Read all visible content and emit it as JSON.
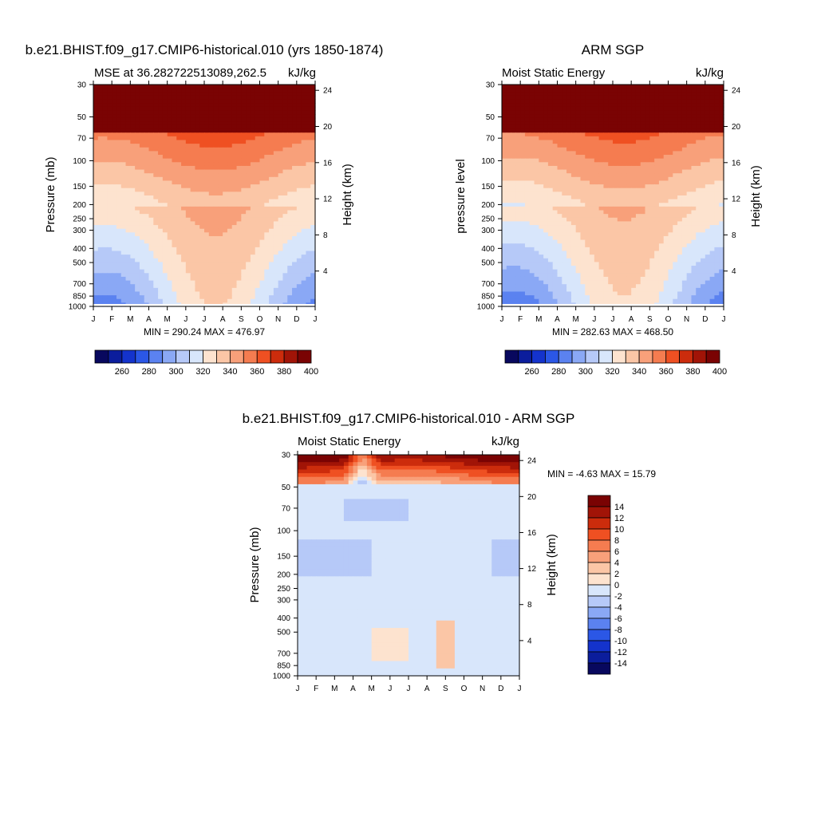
{
  "colors": {
    "palette": [
      "#08085e",
      "#0b1d9c",
      "#1433cc",
      "#2b57e6",
      "#5b82f0",
      "#8aa8f5",
      "#b6c9f8",
      "#d8e6fb",
      "#fde3cf",
      "#fbc6a6",
      "#f8a07a",
      "#f57c50",
      "#ef5022",
      "#cc2c0c",
      "#a11407",
      "#7a0303"
    ]
  },
  "chart_data": [
    {
      "type": "heatmap",
      "title": "b.e21.BHIST.f09_g17.CMIP6-historical.010 (yrs 1850-1874)",
      "left_label": "MSE at 36.282722513089,262.5",
      "right_label": "kJ/kg",
      "ylabel": "Pressure (mb)",
      "ylabel_right": "Height (km)",
      "months": [
        "J",
        "F",
        "M",
        "A",
        "M",
        "J",
        "J",
        "A",
        "S",
        "O",
        "N",
        "D",
        "J"
      ],
      "pressure_ticks": [
        "30",
        "50",
        "70",
        "100",
        "150",
        "200",
        "250",
        "300",
        "400",
        "500",
        "700",
        "850",
        "1000"
      ],
      "height_ticks": [
        "24",
        "20",
        "16",
        "12",
        "8",
        "4"
      ],
      "stats": "MIN = 290.24 MAX = 476.97",
      "colorbar_labels": [
        "260",
        "280",
        "300",
        "320",
        "340",
        "360",
        "380",
        "400"
      ],
      "colorbar_levels": [
        250,
        260,
        270,
        280,
        290,
        300,
        310,
        320,
        330,
        340,
        350,
        360,
        370,
        380,
        390,
        400
      ],
      "scene": "model"
    },
    {
      "type": "heatmap",
      "title": "ARM SGP",
      "left_label": "Moist Static Energy",
      "right_label": "kJ/kg",
      "ylabel": "pressure level",
      "ylabel_right": "Height (km)",
      "months": [
        "J",
        "F",
        "M",
        "A",
        "M",
        "J",
        "J",
        "A",
        "S",
        "O",
        "N",
        "D",
        "J"
      ],
      "pressure_ticks": [
        "30",
        "50",
        "70",
        "100",
        "150",
        "200",
        "250",
        "300",
        "400",
        "500",
        "700",
        "850",
        "1000"
      ],
      "height_ticks": [
        "24",
        "20",
        "16",
        "12",
        "8",
        "4"
      ],
      "stats": "MIN = 282.63 MAX = 468.50",
      "colorbar_labels": [
        "260",
        "280",
        "300",
        "320",
        "340",
        "360",
        "380",
        "400"
      ],
      "colorbar_levels": [
        250,
        260,
        270,
        280,
        290,
        300,
        310,
        320,
        330,
        340,
        350,
        360,
        370,
        380,
        390,
        400
      ],
      "scene": "obs"
    },
    {
      "type": "heatmap",
      "title": "b.e21.BHIST.f09_g17.CMIP6-historical.010 - ARM SGP",
      "left_label": "Moist Static Energy",
      "right_label": "kJ/kg",
      "ylabel": "Pressure (mb)",
      "ylabel_right": "Height (km)",
      "months": [
        "J",
        "F",
        "M",
        "A",
        "M",
        "J",
        "J",
        "A",
        "S",
        "O",
        "N",
        "D",
        "J"
      ],
      "pressure_ticks": [
        "30",
        "50",
        "70",
        "100",
        "150",
        "200",
        "250",
        "300",
        "400",
        "500",
        "700",
        "850",
        "1000"
      ],
      "height_ticks": [
        "24",
        "20",
        "16",
        "12",
        "8",
        "4"
      ],
      "stats": "MIN =  -4.63 MAX =  15.79",
      "colorbar_labels": [
        "14",
        "12",
        "10",
        "8",
        "6",
        "4",
        "2",
        "0",
        "-2",
        "-4",
        "-6",
        "-8",
        "-10",
        "-12",
        "-14"
      ],
      "colorbar_levels": [
        -14,
        -12,
        -10,
        -8,
        -6,
        -4,
        -2,
        0,
        2,
        4,
        6,
        8,
        10,
        12,
        14
      ],
      "scene": "diff"
    }
  ]
}
